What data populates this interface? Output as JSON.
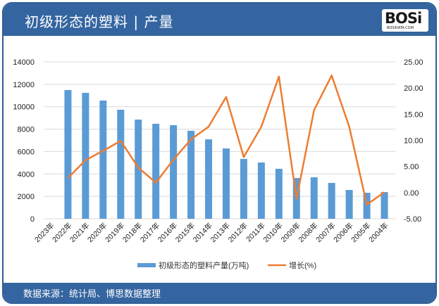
{
  "header": {
    "title": "初级形态的塑料 | 产量",
    "logo_text": "BOSi",
    "logo_sub": "BOSIDATA.COM"
  },
  "footer": {
    "source": "数据来源：统计局、博思数据整理"
  },
  "colors": {
    "header_bg": "#3465a0",
    "bar": "#5b9bd5",
    "line": "#ed7d31",
    "grid": "#d9d9d9"
  },
  "chart_data": {
    "type": "bar+line",
    "title": "初级形态的塑料 | 产量",
    "categories": [
      "2023年",
      "2022年",
      "2021年",
      "2020年",
      "2019年",
      "2018年",
      "2017年",
      "2016年",
      "2015年",
      "2014年",
      "2013年",
      "2012年",
      "2011年",
      "2010年",
      "2009年",
      "2008年",
      "2007年",
      "2006年",
      "2005年",
      "2004年"
    ],
    "series": [
      {
        "name": "初级形态的塑料产量(万吨)",
        "type": "bar",
        "axis": "left",
        "values": [
          null,
          11490,
          11240,
          10550,
          9730,
          8850,
          8480,
          8350,
          7850,
          7090,
          6280,
          5340,
          5020,
          4460,
          3640,
          3700,
          3200,
          2570,
          2320,
          2380
        ]
      },
      {
        "name": "增长(%)",
        "type": "line",
        "axis": "right",
        "values": [
          null,
          2.8,
          6.2,
          8.0,
          9.9,
          4.8,
          1.9,
          6.3,
          10.2,
          12.6,
          18.3,
          6.8,
          12.6,
          22.2,
          -1.2,
          15.8,
          22.4,
          12.6,
          -2.3,
          0.1
        ]
      }
    ],
    "left_axis": {
      "min": 0,
      "max": 14000,
      "step": 2000,
      "ticks": [
        "0",
        "2000",
        "4000",
        "6000",
        "8000",
        "10000",
        "12000",
        "14000"
      ]
    },
    "right_axis": {
      "min": -5,
      "max": 25,
      "step": 5,
      "ticks": [
        "-5.00",
        "0.00",
        "5.00",
        "10.00",
        "15.00",
        "20.00",
        "25.00"
      ]
    },
    "legend": {
      "position": "bottom",
      "items": [
        "初级形态的塑料产量(万吨)",
        "增长(%)"
      ]
    },
    "grid": true
  }
}
